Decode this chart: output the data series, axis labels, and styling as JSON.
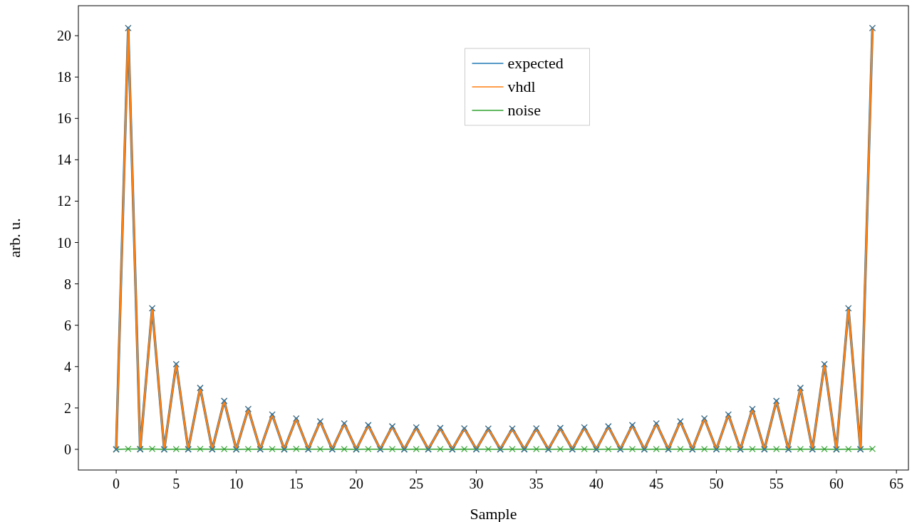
{
  "chart_data": {
    "type": "line",
    "xlabel": "Sample",
    "ylabel": "arb. u.",
    "x": [
      0,
      1,
      2,
      3,
      4,
      5,
      6,
      7,
      8,
      9,
      10,
      11,
      12,
      13,
      14,
      15,
      16,
      17,
      18,
      19,
      20,
      21,
      22,
      23,
      24,
      25,
      26,
      27,
      28,
      29,
      30,
      31,
      32,
      33,
      34,
      35,
      36,
      37,
      38,
      39,
      40,
      41,
      42,
      43,
      44,
      45,
      46,
      47,
      48,
      49,
      50,
      51,
      52,
      53,
      54,
      55,
      56,
      57,
      58,
      59,
      60,
      61,
      62,
      63
    ],
    "series": [
      {
        "name": "expected",
        "color": "#1f77b4",
        "values": [
          0,
          20.37,
          0,
          6.82,
          0,
          4.12,
          0,
          2.97,
          0,
          2.34,
          0,
          1.95,
          0,
          1.68,
          0,
          1.49,
          0,
          1.35,
          0,
          1.25,
          0,
          1.17,
          0,
          1.11,
          0,
          1.06,
          0,
          1.03,
          0,
          1.01,
          0,
          1.0,
          0,
          1.0,
          0,
          1.01,
          0,
          1.03,
          0,
          1.06,
          0,
          1.11,
          0,
          1.17,
          0,
          1.25,
          0,
          1.35,
          0,
          1.49,
          0,
          1.68,
          0,
          1.95,
          0,
          2.34,
          0,
          2.97,
          0,
          4.12,
          0,
          6.82,
          0,
          20.37
        ]
      },
      {
        "name": "vhdl",
        "color": "#ff7f0e",
        "values": [
          0,
          20.37,
          0,
          6.82,
          0,
          4.12,
          0,
          2.97,
          0,
          2.34,
          0,
          1.95,
          0,
          1.68,
          0,
          1.49,
          0,
          1.35,
          0,
          1.25,
          0,
          1.17,
          0,
          1.11,
          0,
          1.06,
          0,
          1.03,
          0,
          1.01,
          0,
          1.0,
          0,
          1.0,
          0,
          1.01,
          0,
          1.03,
          0,
          1.06,
          0,
          1.11,
          0,
          1.17,
          0,
          1.25,
          0,
          1.35,
          0,
          1.49,
          0,
          1.68,
          0,
          1.95,
          0,
          2.34,
          0,
          2.97,
          0,
          4.12,
          0,
          6.82,
          0,
          20.37
        ]
      },
      {
        "name": "noise",
        "color": "#2ca02c",
        "values": [
          0,
          0.02,
          0.02,
          0.02,
          0,
          0.01,
          0.01,
          0.02,
          0.01,
          0.01,
          0,
          0.01,
          0.01,
          0.01,
          0,
          0.02,
          0.01,
          0.01,
          0.01,
          0.01,
          0,
          0.01,
          0.01,
          0.01,
          0,
          0.01,
          0.01,
          0.01,
          0,
          0.01,
          0.01,
          0.01,
          0,
          0.01,
          0.01,
          0.01,
          0,
          0.01,
          0.01,
          0.01,
          0,
          0.01,
          0.01,
          0.01,
          0,
          0.01,
          0.01,
          0.01,
          0,
          0.01,
          0.01,
          0.01,
          0,
          0.01,
          0.01,
          0.01,
          0,
          0.01,
          0.01,
          0.01,
          0,
          0.01,
          0.01,
          0.02
        ]
      }
    ],
    "xlim": [
      -3.15,
      66
    ],
    "xticks": [
      0,
      5,
      10,
      15,
      20,
      25,
      30,
      35,
      40,
      45,
      50,
      55,
      60,
      65
    ],
    "ylim": [
      -1,
      21.45
    ],
    "yticks": [
      0,
      2,
      4,
      6,
      8,
      10,
      12,
      14,
      16,
      18,
      20
    ],
    "grid": false,
    "legend": "top center",
    "marker": "cross",
    "line_style": "solid"
  }
}
